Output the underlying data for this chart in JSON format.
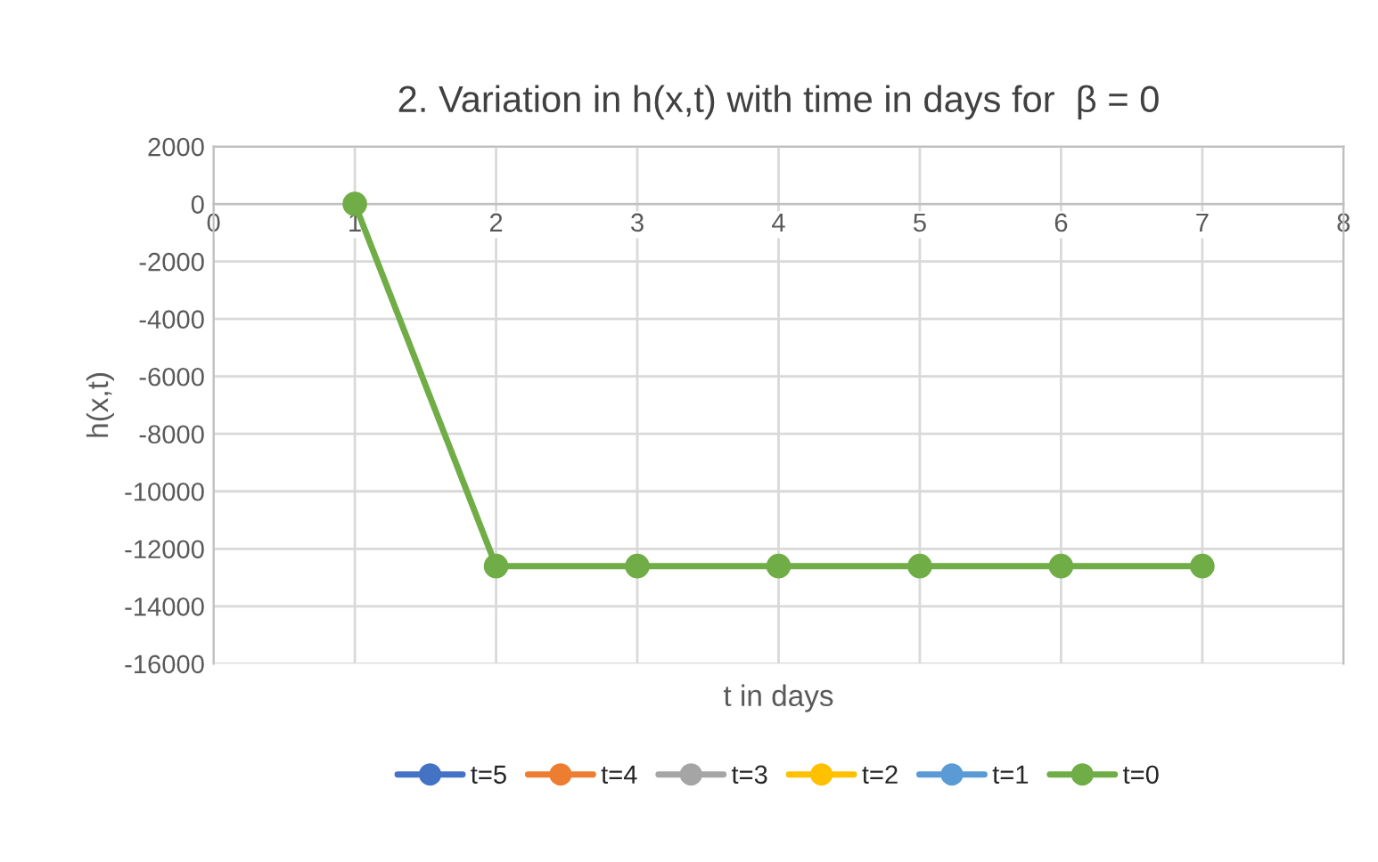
{
  "chart_data": {
    "type": "line",
    "title": "2. Variation in h(x,t) with time in days for  β = 0",
    "xlabel": "t in days",
    "ylabel": "h(x,t)",
    "x": [
      1,
      2,
      3,
      4,
      5,
      6,
      7
    ],
    "series": [
      {
        "name": "t=5",
        "color": "#4472c4",
        "values": [
          null,
          null,
          null,
          null,
          null,
          null,
          null
        ]
      },
      {
        "name": "t=4",
        "color": "#ed7d31",
        "values": [
          null,
          null,
          null,
          null,
          null,
          null,
          null
        ]
      },
      {
        "name": "t=3",
        "color": "#a5a5a5",
        "values": [
          null,
          null,
          null,
          null,
          null,
          null,
          null
        ]
      },
      {
        "name": "t=2",
        "color": "#ffc000",
        "values": [
          null,
          null,
          null,
          null,
          null,
          null,
          null
        ]
      },
      {
        "name": "t=1",
        "color": "#5b9bd5",
        "values": [
          null,
          null,
          null,
          null,
          null,
          null,
          null
        ]
      },
      {
        "name": "t=0",
        "color": "#70ad47",
        "values": [
          0,
          -12600,
          -12600,
          -12600,
          -12600,
          -12600,
          -12600
        ]
      }
    ],
    "xlim": [
      0,
      8
    ],
    "xticks": [
      0,
      1,
      2,
      3,
      4,
      5,
      6,
      7,
      8
    ],
    "ylim": [
      -16000,
      2000
    ],
    "yticks": [
      -16000,
      -14000,
      -12000,
      -10000,
      -8000,
      -6000,
      -4000,
      -2000,
      0,
      2000
    ],
    "grid": true,
    "legend": "bottom",
    "marker": "circle",
    "line_style": "solid"
  }
}
